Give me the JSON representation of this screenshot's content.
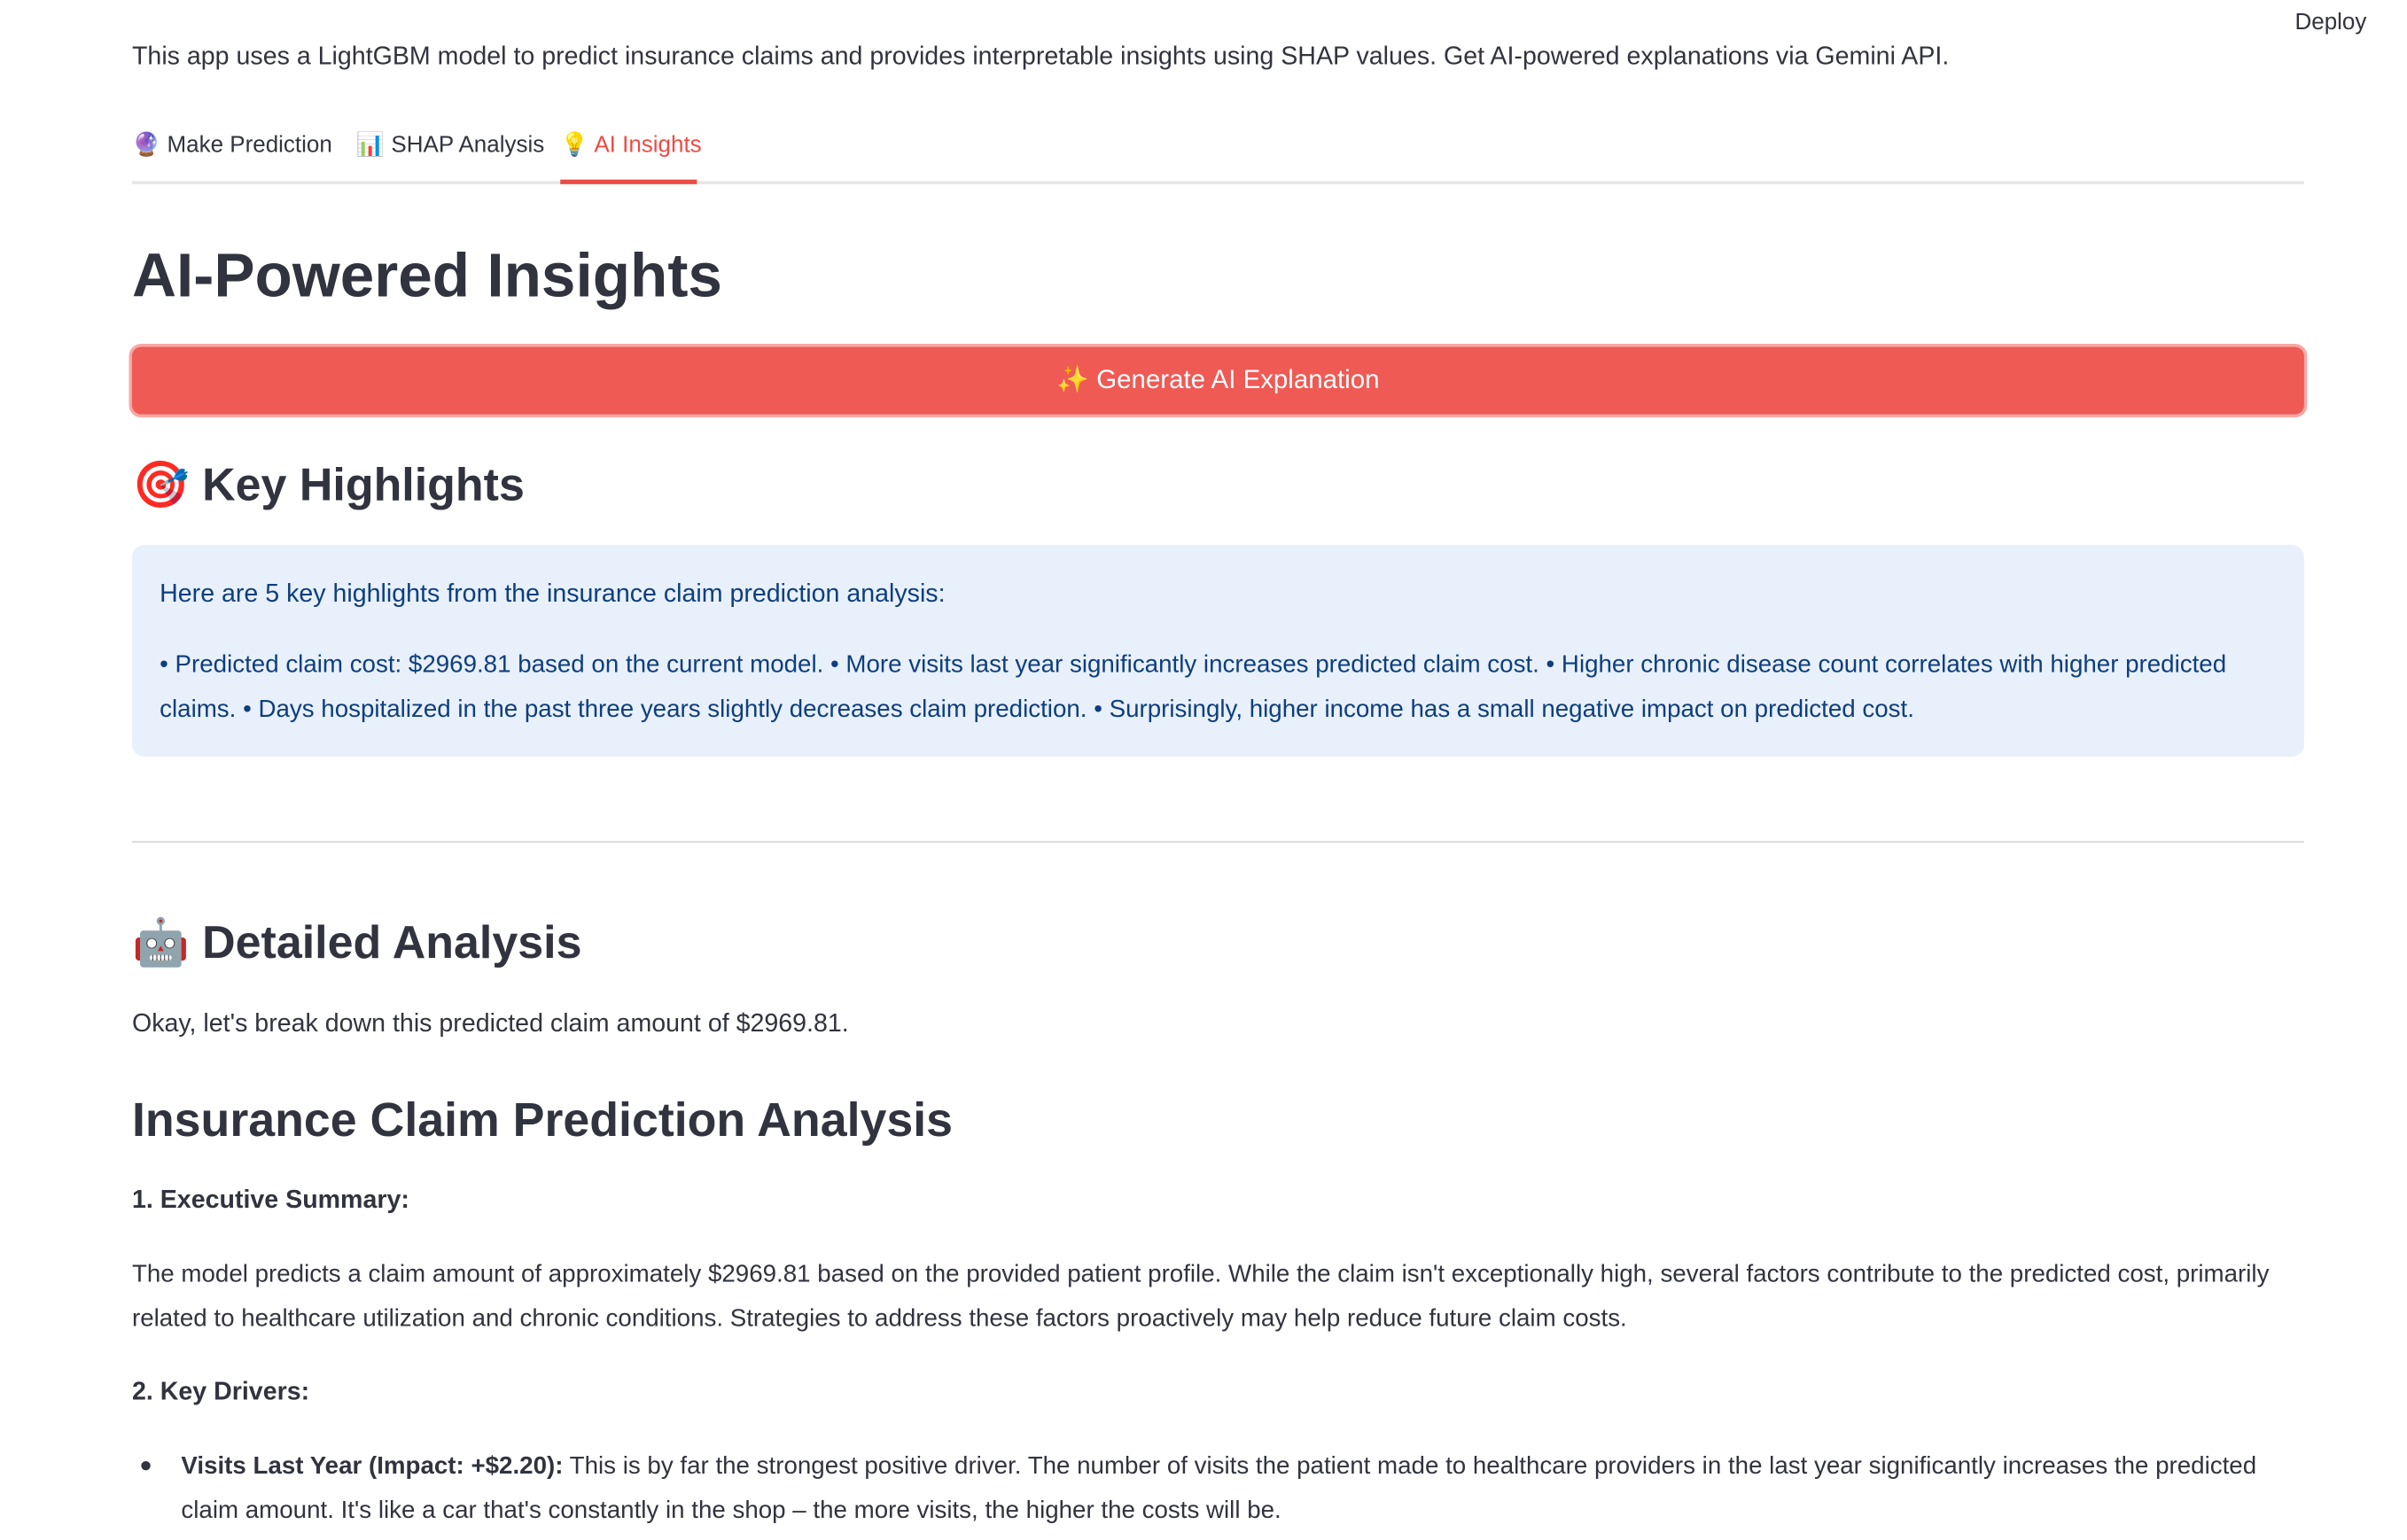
{
  "header": {
    "deploy": "Deploy"
  },
  "intro": "This app uses a LightGBM model to predict insurance claims and provides interpretable insights using SHAP values. Get AI-powered explanations via Gemini API.",
  "tabs": [
    "🔮 Make Prediction",
    "📊 SHAP Analysis",
    "💡 AI Insights"
  ],
  "page_title": "AI-Powered Insights",
  "button": "✨ Generate AI Explanation",
  "highlights": {
    "heading": "🎯 Key Highlights",
    "intro": "Here are 5 key highlights from the insurance claim prediction analysis:",
    "body": "• Predicted claim cost: $2969.81 based on the current model. • More visits last year significantly increases predicted claim cost. • Higher chronic disease count correlates with higher predicted claims. • Days hospitalized in the past three years slightly decreases claim prediction. • Surprisingly, higher income has a small negative impact on predicted cost."
  },
  "analysis": {
    "heading": "🤖 Detailed Analysis",
    "intro": "Okay, let's break down this predicted claim amount of $2969.81.",
    "title": "Insurance Claim Prediction Analysis",
    "summary_heading": "1. Executive Summary:",
    "summary": "The model predicts a claim amount of approximately $2969.81 based on the provided patient profile. While the claim isn't exceptionally high, several factors contribute to the predicted cost, primarily related to healthcare utilization and chronic conditions. Strategies to address these factors proactively may help reduce future claim costs.",
    "drivers_heading": "2. Key Drivers:",
    "drivers": [
      {
        "label": "Visits Last Year (Impact: +$2.20):",
        "text": "This is by far the strongest positive driver. The number of visits the patient made to healthcare providers in the last year significantly increases the predicted claim amount. It's like a car that's constantly in the shop – the more visits, the higher the costs will be."
      }
    ]
  }
}
